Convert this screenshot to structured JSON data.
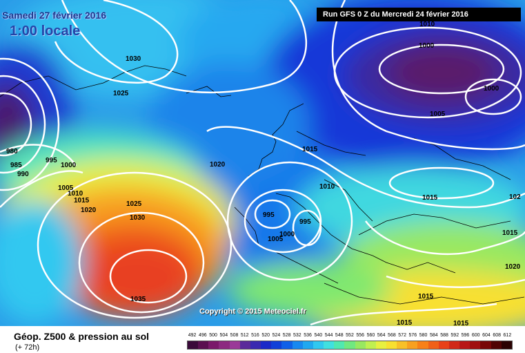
{
  "header": {
    "date": "Samedi 27 février 2016",
    "time": "1:00 locale",
    "run": "Run GFS 0 Z du Mercredi 24 février 2016"
  },
  "copyright": "Copyright © 2015 Meteociel.fr",
  "legend": {
    "title": "Géop. Z500 & pression au sol",
    "subtitle": "(+ 72h)",
    "scale_values": [
      "492",
      "496",
      "500",
      "504",
      "508",
      "512",
      "516",
      "520",
      "524",
      "528",
      "532",
      "536",
      "540",
      "544",
      "548",
      "552",
      "556",
      "560",
      "564",
      "568",
      "572",
      "576",
      "580",
      "584",
      "588",
      "592",
      "596",
      "600",
      "604",
      "608",
      "612"
    ],
    "scale_colors": [
      "#3a0a3a",
      "#5a1050",
      "#7a1a6a",
      "#8c2a80",
      "#9a3a98",
      "#5a2a9a",
      "#3a2ab0",
      "#1a2ac8",
      "#1040d8",
      "#1060e8",
      "#1888f0",
      "#20a8f0",
      "#30c8f0",
      "#40e0e0",
      "#50e8b0",
      "#70e880",
      "#98e860",
      "#c0f050",
      "#e8f040",
      "#f8e030",
      "#f8c028",
      "#f8a020",
      "#f88018",
      "#f06018",
      "#e84018",
      "#d02818",
      "#b81818",
      "#a01010",
      "#780808",
      "#500404",
      "#2a0202"
    ]
  },
  "isobars": [
    {
      "text": "1030"
    },
    {
      "text": "1025"
    },
    {
      "text": "980"
    },
    {
      "text": "985"
    },
    {
      "text": "990"
    },
    {
      "text": "995"
    },
    {
      "text": "1000"
    },
    {
      "text": "1005"
    },
    {
      "text": "1010"
    },
    {
      "text": "1015"
    },
    {
      "text": "1020"
    },
    {
      "text": "1025"
    },
    {
      "text": "1030"
    },
    {
      "text": "1035"
    },
    {
      "text": "1020"
    },
    {
      "text": "995"
    },
    {
      "text": "995"
    },
    {
      "text": "1000"
    },
    {
      "text": "1005"
    },
    {
      "text": "1010"
    },
    {
      "text": "1015"
    },
    {
      "text": "1010"
    },
    {
      "text": "1000"
    },
    {
      "text": "1000"
    },
    {
      "text": "1005"
    },
    {
      "text": "1015"
    },
    {
      "text": "102"
    },
    {
      "text": "1015"
    },
    {
      "text": "1020"
    },
    {
      "text": "1015"
    },
    {
      "text": "1015"
    },
    {
      "text": "1015"
    }
  ]
}
